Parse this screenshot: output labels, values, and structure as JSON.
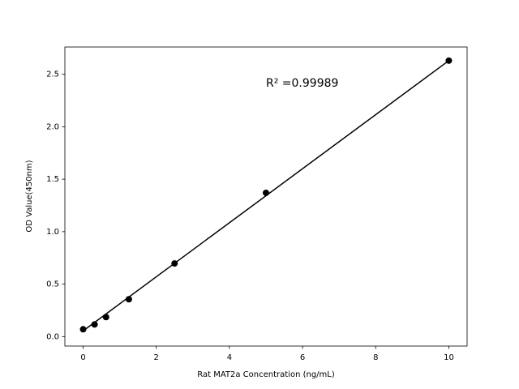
{
  "chart_data": {
    "type": "scatter",
    "x_label": "Rat MAT2a Concentration (ng/mL)",
    "y_label": "OD Value(450nm)",
    "annotation": "R² =0.99989",
    "x": [
      0,
      0.3125,
      0.625,
      1.25,
      2.5,
      5,
      10
    ],
    "series": [
      {
        "color": "#000000",
        "values": [
          0.07,
          0.116,
          0.186,
          0.356,
          0.697,
          1.37,
          2.63
        ]
      }
    ],
    "fit_line": {
      "color": "#000000",
      "x": [
        0,
        10
      ],
      "values": [
        0.055,
        2.63
      ]
    },
    "xlim": [
      -0.5,
      10.5
    ],
    "ylim": [
      -0.09,
      2.76
    ],
    "xticks": [
      0,
      2,
      4,
      6,
      8,
      10
    ],
    "yticks": [
      {
        "value": 0,
        "label": "0.0"
      },
      0.5,
      {
        "value": 1,
        "label": "1.0"
      },
      1.5,
      {
        "value": 2,
        "label": "2.0"
      },
      2.5
    ],
    "grid": false
  }
}
